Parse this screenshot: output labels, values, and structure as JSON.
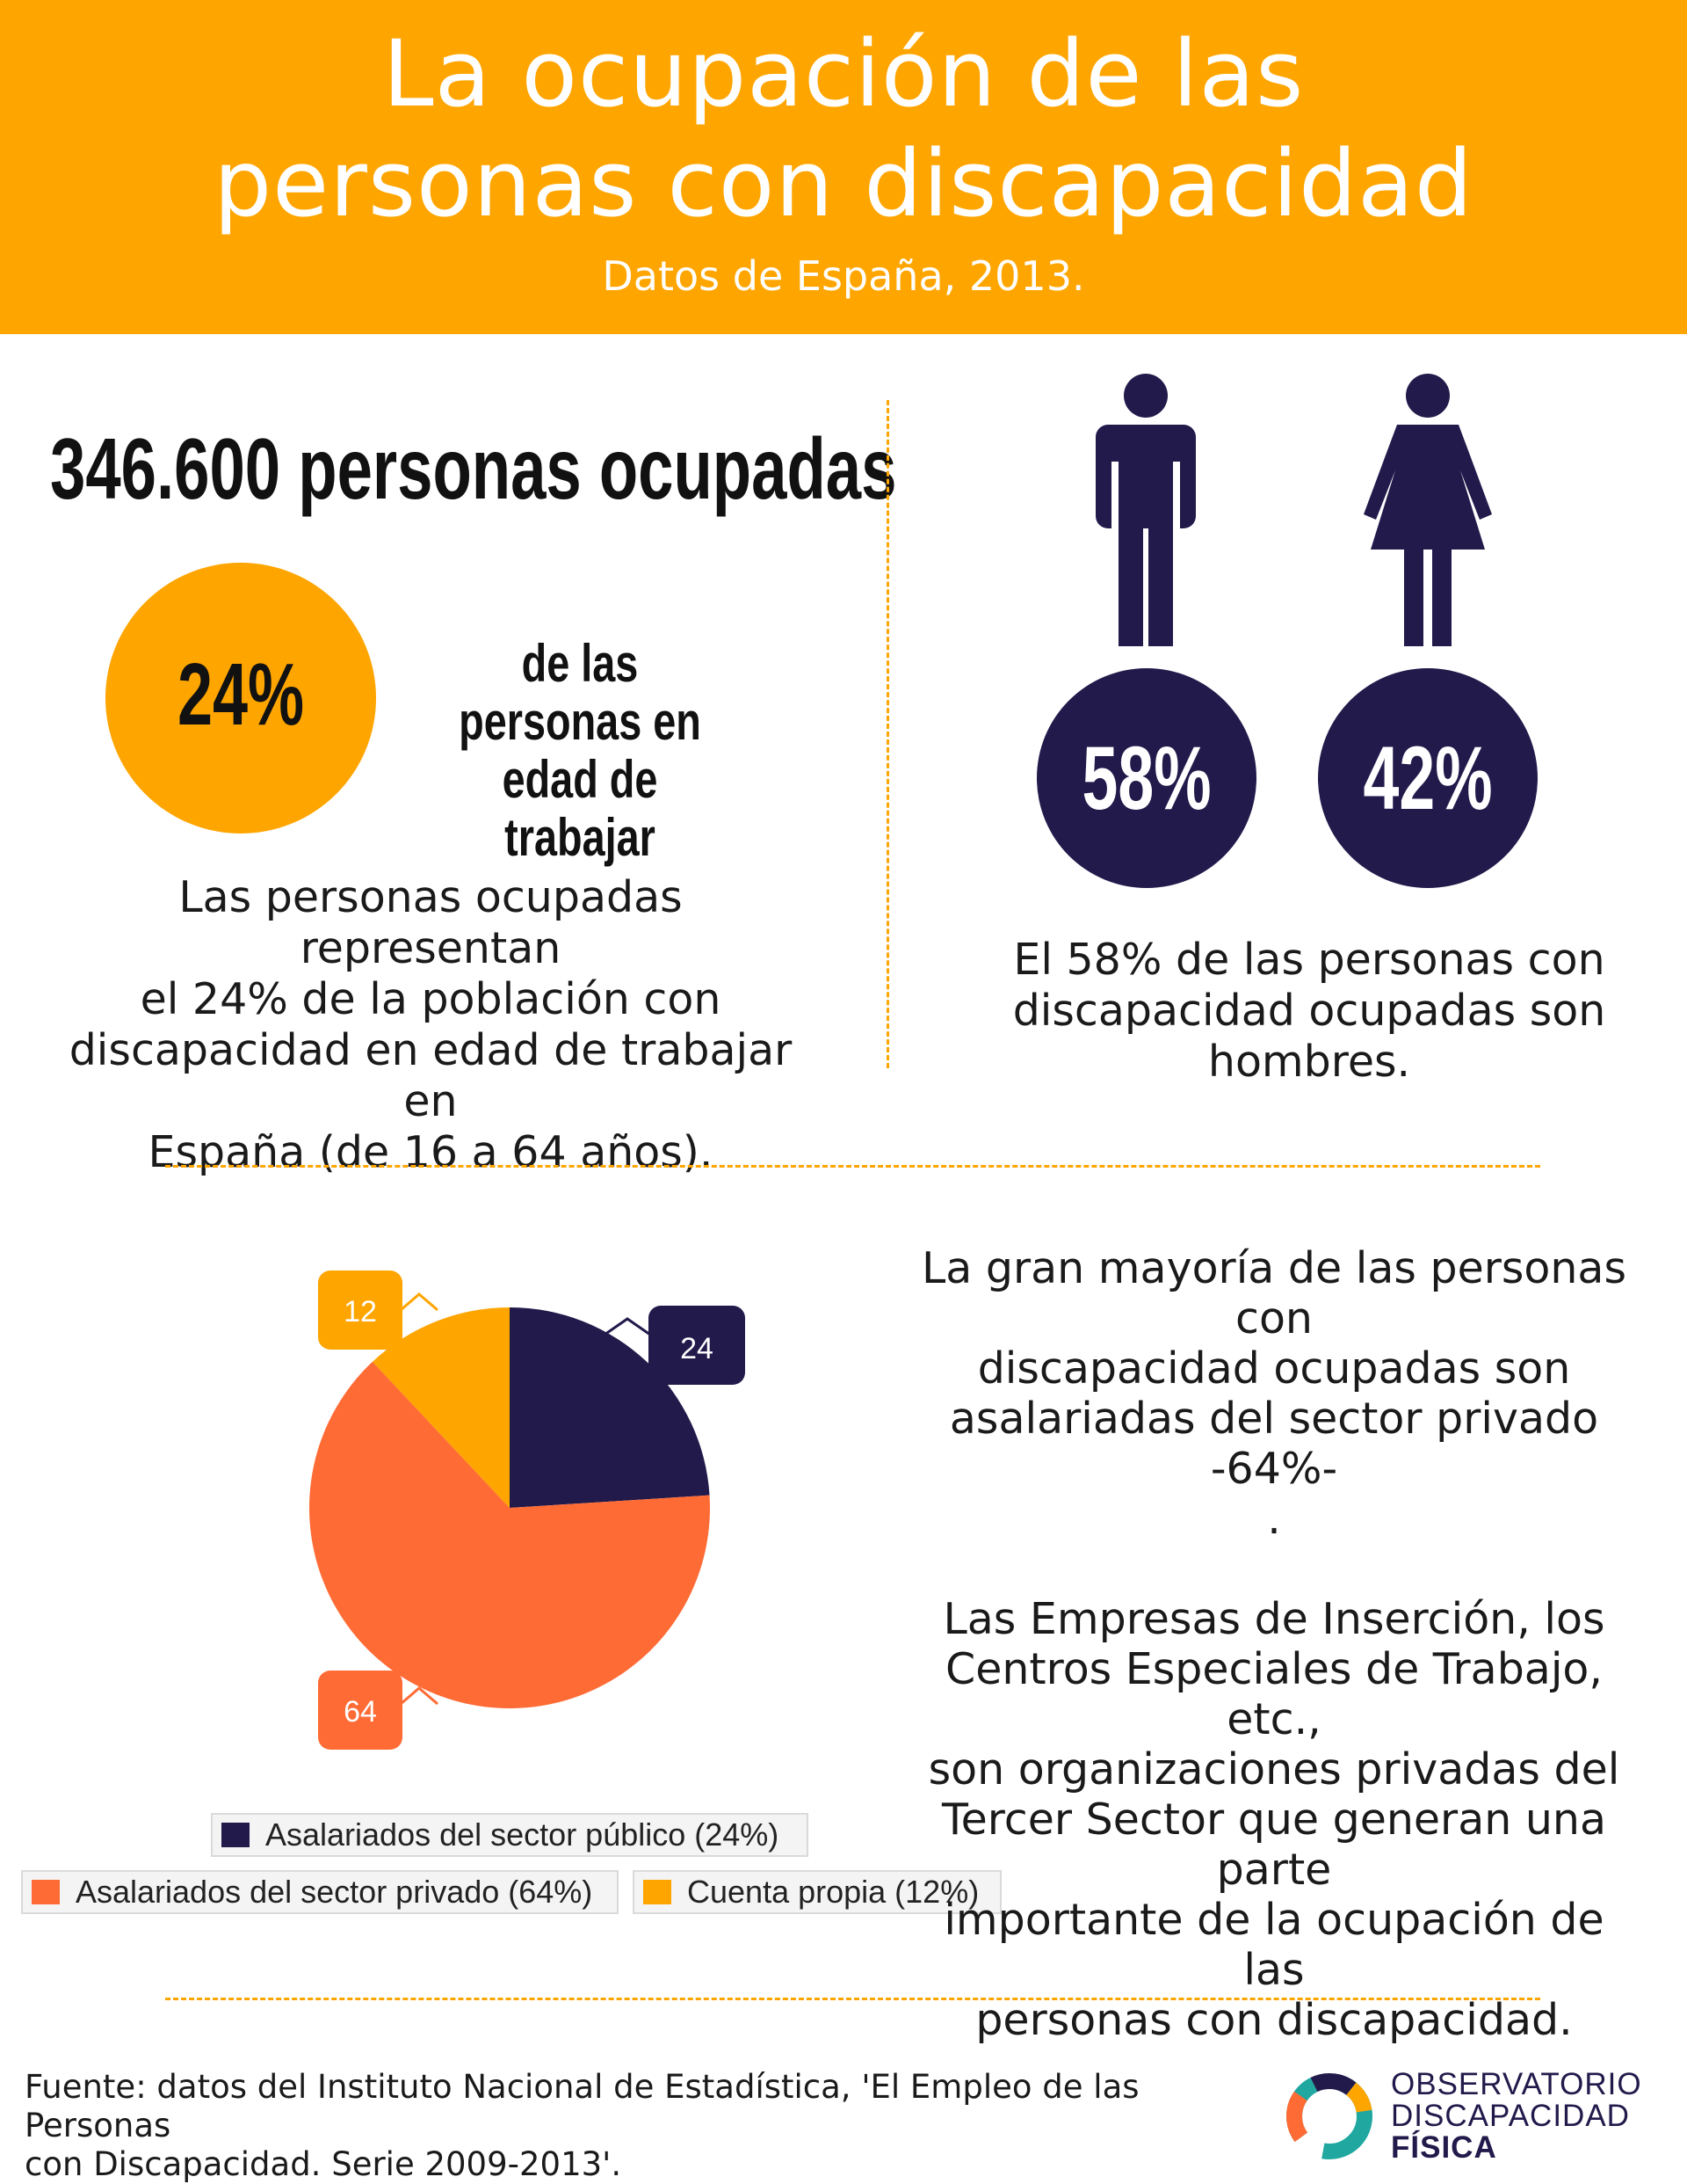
{
  "header": {
    "title_line1": "La ocupación de las",
    "title_line2": "personas con discapacidad",
    "subtitle": "Datos de España, 2013.",
    "background": "#FFA500"
  },
  "employed": {
    "count_text": "346.600 personas ocupadas",
    "percent": "24%",
    "percent_label_line1": "de las personas en",
    "percent_label_line2": "edad de trabajar",
    "description": [
      "Las personas ocupadas representan",
      "el 24% de la población con",
      "discapacidad en edad de trabajar en",
      "España (de 16 a 64 años)."
    ]
  },
  "gender": {
    "male_icon": "man-icon",
    "female_icon": "woman-icon",
    "male_percent": "58%",
    "female_percent": "42%",
    "color": "#221A4B",
    "description": [
      "El 58% de las personas con",
      "discapacidad ocupadas son",
      "hombres."
    ]
  },
  "chart_data": {
    "type": "pie",
    "categories": [
      "Asalariados del sector público (24%)",
      "Asalariados del sector privado (64%)",
      "Cuenta propia (12%)"
    ],
    "values": [
      24,
      64,
      12
    ],
    "data_labels": [
      "24",
      "64",
      "12"
    ],
    "colors": [
      "#221A4B",
      "#FF6B35",
      "#FFA500"
    ],
    "legend_position": "bottom"
  },
  "chart_text": {
    "para1": [
      "La gran mayoría de las personas con",
      "discapacidad ocupadas son",
      "asalariadas del sector privado -64%-",
      "."
    ],
    "para2": [
      "Las Empresas de Inserción, los",
      "Centros Especiales de Trabajo, etc.,",
      "son organizaciones privadas del",
      "Tercer Sector que generan una parte",
      "importante de la ocupación de las",
      "personas con discapacidad."
    ]
  },
  "footer": {
    "source_line1": "Fuente: datos del Instituto Nacional de Estadística, 'El Empleo de las Personas",
    "source_line2": "con Discapacidad. Serie 2009-2013'.",
    "logo_line1": "OBSERVATORIO",
    "logo_line2": "DISCAPACIDAD",
    "logo_line3": "FÍSICA"
  }
}
